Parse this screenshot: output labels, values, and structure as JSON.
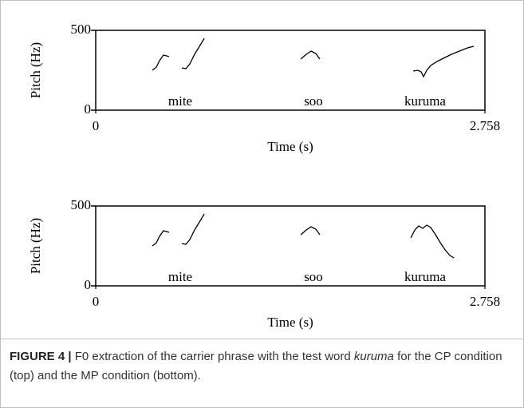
{
  "chart_data": [
    {
      "type": "line",
      "xlabel": "Time (s)",
      "ylabel": "Pitch (Hz)",
      "xlim": [
        0,
        2.758
      ],
      "xticks": [
        0,
        2.758
      ],
      "ylim": [
        0,
        500
      ],
      "yticks": [
        0,
        500
      ],
      "annotations": [
        "mite",
        "soo",
        "kuruma"
      ],
      "color": "#000000",
      "x": [
        0.401,
        0.43,
        0.452,
        0.48,
        0.503,
        0.52,
        null,
        0.61,
        0.639,
        0.667,
        0.701,
        0.735,
        0.769,
        null,
        1.453,
        1.492,
        1.526,
        1.56,
        1.588,
        null,
        2.25,
        2.283,
        2.306,
        2.323,
        2.346,
        2.374,
        2.419,
        2.464,
        2.521,
        2.577,
        2.634,
        2.679
      ],
      "values": [
        250,
        270,
        310,
        345,
        340,
        335,
        null,
        265,
        260,
        290,
        350,
        400,
        450,
        null,
        320,
        350,
        370,
        355,
        320,
        null,
        245,
        250,
        240,
        210,
        250,
        280,
        305,
        325,
        350,
        370,
        390,
        400
      ]
    },
    {
      "type": "line",
      "xlabel": "Time (s)",
      "ylabel": "Pitch (Hz)",
      "xlim": [
        0,
        2.758
      ],
      "xticks": [
        0,
        2.758
      ],
      "ylim": [
        0,
        500
      ],
      "yticks": [
        0,
        500
      ],
      "annotations": [
        "mite",
        "soo",
        "kuruma"
      ],
      "color": "#000000",
      "x": [
        0.401,
        0.43,
        0.452,
        0.48,
        0.503,
        0.52,
        null,
        0.61,
        0.639,
        0.667,
        0.701,
        0.735,
        0.769,
        null,
        1.453,
        1.492,
        1.526,
        1.56,
        1.588,
        null,
        2.233,
        2.261,
        2.289,
        2.317,
        2.346,
        2.374,
        2.408,
        2.442,
        2.476,
        2.51,
        2.538
      ],
      "values": [
        250,
        270,
        310,
        345,
        340,
        335,
        null,
        265,
        260,
        290,
        350,
        400,
        450,
        null,
        320,
        350,
        370,
        355,
        320,
        null,
        300,
        350,
        375,
        360,
        380,
        365,
        320,
        270,
        225,
        190,
        175
      ]
    }
  ],
  "caption": {
    "label": "FIGURE 4 |",
    "text_before": " F0 extraction of the carrier phrase with the test word ",
    "italic": "kuruma",
    "text_after": " for the CP condition (top) and the MP condition (bottom)."
  }
}
